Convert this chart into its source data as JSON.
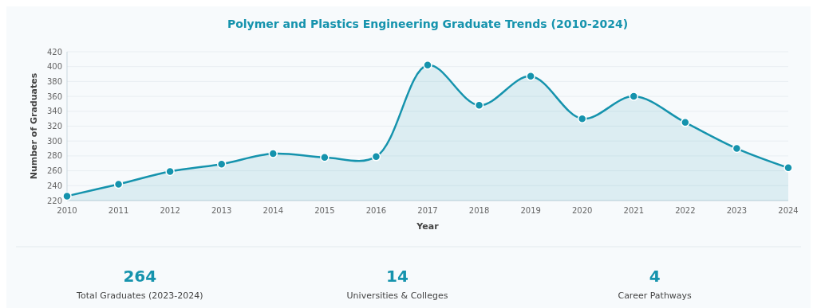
{
  "chart_data": [
    {
      "type": "area",
      "title": "Polymer and Plastics Engineering Graduate Trends (2010-2024)",
      "xlabel": "Year",
      "ylabel": "Number of Graduates",
      "x": [
        2010,
        2011,
        2012,
        2013,
        2014,
        2015,
        2016,
        2017,
        2018,
        2019,
        2020,
        2021,
        2022,
        2023,
        2024
      ],
      "series": [
        {
          "color": "#1593ad",
          "values": [
            226,
            242,
            259,
            269,
            283,
            278,
            279,
            402,
            348,
            387,
            330,
            360,
            325,
            290,
            264
          ]
        }
      ],
      "xlim": [
        2010,
        2024
      ],
      "xticks": [
        2010,
        2011,
        2012,
        2013,
        2014,
        2015,
        2016,
        2017,
        2018,
        2019,
        2020,
        2021,
        2022,
        2023,
        2024
      ],
      "ylim": [
        220,
        420
      ],
      "yticks": [
        220,
        240,
        260,
        280,
        300,
        320,
        340,
        360,
        380,
        400,
        420
      ],
      "grid": "y",
      "marker": "circle"
    },
    {
      "type": "other",
      "categories": [
        "Total Graduates (2023-2024)",
        "Universities & Colleges",
        "Career Pathways"
      ],
      "values": [
        264,
        14,
        4
      ],
      "color": "#1593ad",
      "data_labels": true
    }
  ]
}
